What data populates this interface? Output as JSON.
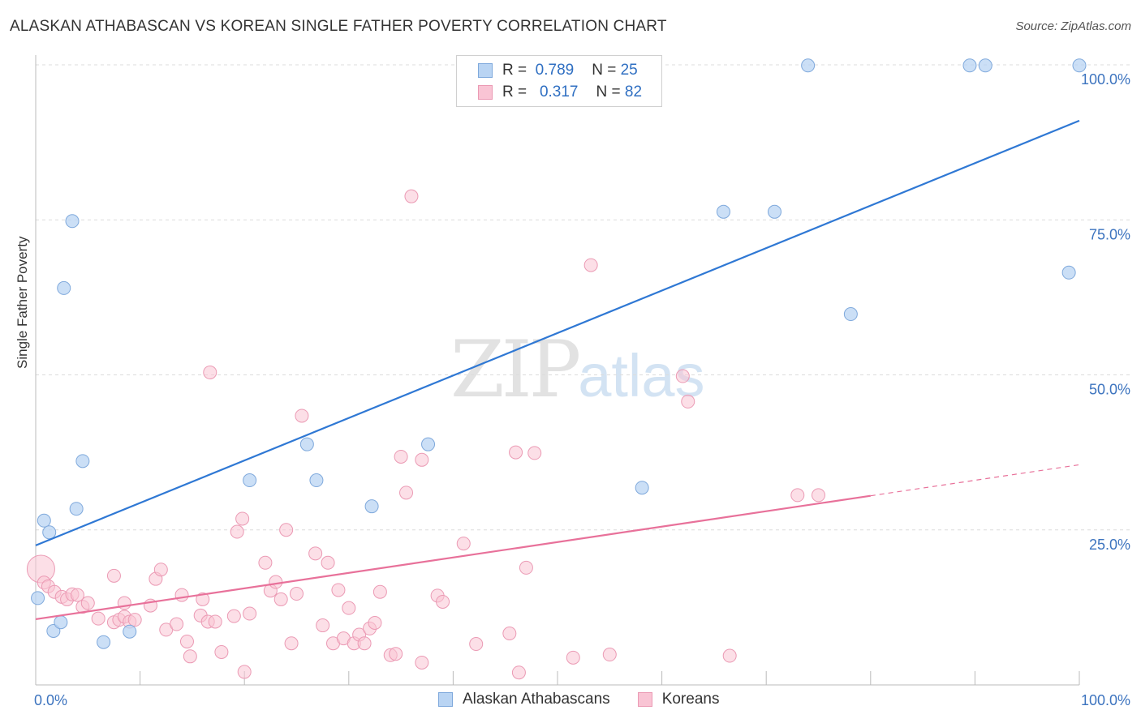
{
  "header": {
    "title": "ALASKAN ATHABASCAN VS KOREAN SINGLE FATHER POVERTY CORRELATION CHART",
    "source": "Source: ZipAtlas.com"
  },
  "watermark": {
    "zip": "ZIP",
    "atlas": "atlas"
  },
  "legend": {
    "r_label": "R =",
    "n_label": "N =",
    "series": [
      {
        "name": "Alaskan Athabascans",
        "r": "0.789",
        "n": "25"
      },
      {
        "name": "Koreans",
        "r": "0.317",
        "n": "82"
      }
    ]
  },
  "chart_data": {
    "type": "scatter",
    "title": "ALASKAN ATHABASCAN VS KOREAN SINGLE FATHER POVERTY CORRELATION CHART",
    "xlabel": "",
    "ylabel": "Single Father Poverty",
    "xlim": [
      0,
      100
    ],
    "ylim": [
      0,
      100
    ],
    "x_tick_labels": [
      "0.0%",
      "100.0%"
    ],
    "y_tick_labels": [
      "25.0%",
      "50.0%",
      "75.0%",
      "100.0%"
    ],
    "y_ticks": [
      25,
      50,
      75,
      100
    ],
    "grid": true,
    "legend_position": "top-center",
    "colors": {
      "Alaskan Athabascans": {
        "fill": "#b9d4f3",
        "stroke": "#7fa9dc",
        "line": "#2f78d4"
      },
      "Koreans": {
        "fill": "#f9c4d4",
        "stroke": "#eb9ab4",
        "line": "#e8719a"
      }
    },
    "series": [
      {
        "name": "Alaskan Athabascans",
        "points": [
          [
            0.2,
            14
          ],
          [
            0.8,
            26.5
          ],
          [
            1.3,
            24.6
          ],
          [
            1.7,
            8.7
          ],
          [
            2.4,
            10.1
          ],
          [
            2.7,
            64
          ],
          [
            3.5,
            74.8
          ],
          [
            3.9,
            28.4
          ],
          [
            4.5,
            36.1
          ],
          [
            6.5,
            6.9
          ],
          [
            9.0,
            8.6
          ],
          [
            20.5,
            33
          ],
          [
            26,
            38.8
          ],
          [
            26.9,
            33
          ],
          [
            32.2,
            28.8
          ],
          [
            37.6,
            38.8
          ],
          [
            58.1,
            31.8
          ],
          [
            65.9,
            76.3
          ],
          [
            70.8,
            76.3
          ],
          [
            74,
            99.9
          ],
          [
            78.1,
            59.8
          ],
          [
            89.5,
            99.9
          ],
          [
            91,
            99.9
          ],
          [
            99,
            66.5
          ],
          [
            100,
            99.9
          ]
        ],
        "trend": {
          "x": [
            0,
            100
          ],
          "y": [
            22.5,
            91
          ]
        }
      },
      {
        "name": "Koreans",
        "points": [
          [
            0.5,
            18.7,
            "big"
          ],
          [
            0.8,
            16.5
          ],
          [
            1.2,
            15.9
          ],
          [
            1.8,
            15
          ],
          [
            2.5,
            14.2
          ],
          [
            3.0,
            13.8
          ],
          [
            3.5,
            14.6
          ],
          [
            4.0,
            14.5
          ],
          [
            4.5,
            12.6
          ],
          [
            5.0,
            13.2
          ],
          [
            6.0,
            10.7
          ],
          [
            7.5,
            10.1
          ],
          [
            8.0,
            10.5
          ],
          [
            8.5,
            11
          ],
          [
            9.0,
            10.2
          ],
          [
            9.5,
            10.5
          ],
          [
            7.5,
            17.6
          ],
          [
            8.5,
            13.2
          ],
          [
            11,
            12.8
          ],
          [
            11.5,
            17.1
          ],
          [
            12,
            18.6
          ],
          [
            12.5,
            8.9
          ],
          [
            13.5,
            9.8
          ],
          [
            14,
            14.5
          ],
          [
            14.5,
            7
          ],
          [
            14.8,
            4.6
          ],
          [
            15.8,
            11.2
          ],
          [
            16,
            13.8
          ],
          [
            16.5,
            10.2
          ],
          [
            17.2,
            10.2
          ],
          [
            17.8,
            5.3
          ],
          [
            16.7,
            50.4
          ],
          [
            19,
            11.1
          ],
          [
            19.3,
            24.7
          ],
          [
            19.8,
            26.8
          ],
          [
            20.5,
            11.5
          ],
          [
            20,
            2.1
          ],
          [
            22,
            19.7
          ],
          [
            22.5,
            15.2
          ],
          [
            23,
            16.6
          ],
          [
            23.5,
            13.8
          ],
          [
            24,
            25
          ],
          [
            24.5,
            6.7
          ],
          [
            25,
            14.7
          ],
          [
            25.5,
            43.4
          ],
          [
            26.8,
            21.2
          ],
          [
            27.5,
            9.6
          ],
          [
            28,
            19.7
          ],
          [
            28.5,
            6.7
          ],
          [
            29,
            15.3
          ],
          [
            29.5,
            7.5
          ],
          [
            30,
            12.4
          ],
          [
            30.5,
            6.7
          ],
          [
            31,
            8.1
          ],
          [
            31.5,
            6.7
          ],
          [
            32,
            9.1
          ],
          [
            32.5,
            10
          ],
          [
            33,
            15
          ],
          [
            34,
            4.8
          ],
          [
            34.5,
            5
          ],
          [
            35,
            36.8
          ],
          [
            35.5,
            31
          ],
          [
            36,
            78.8
          ],
          [
            37,
            36.3
          ],
          [
            37,
            3.6
          ],
          [
            38.5,
            14.4
          ],
          [
            39,
            13.4
          ],
          [
            41,
            22.8
          ],
          [
            42.2,
            6.6
          ],
          [
            45.4,
            8.3
          ],
          [
            46.3,
            2
          ],
          [
            47,
            18.9
          ],
          [
            47.8,
            37.4
          ],
          [
            51.5,
            4.4
          ],
          [
            53.2,
            67.7
          ],
          [
            55,
            4.9
          ],
          [
            62,
            49.8
          ],
          [
            62.5,
            45.7
          ],
          [
            66.5,
            4.7
          ],
          [
            73,
            30.6
          ],
          [
            75,
            30.6
          ],
          [
            46,
            37.5
          ]
        ],
        "trend": {
          "x": [
            0,
            80
          ],
          "y": [
            10.6,
            30.5
          ]
        },
        "trend_extension": {
          "x": [
            80,
            100
          ],
          "y": [
            30.5,
            35.5
          ]
        }
      }
    ]
  }
}
